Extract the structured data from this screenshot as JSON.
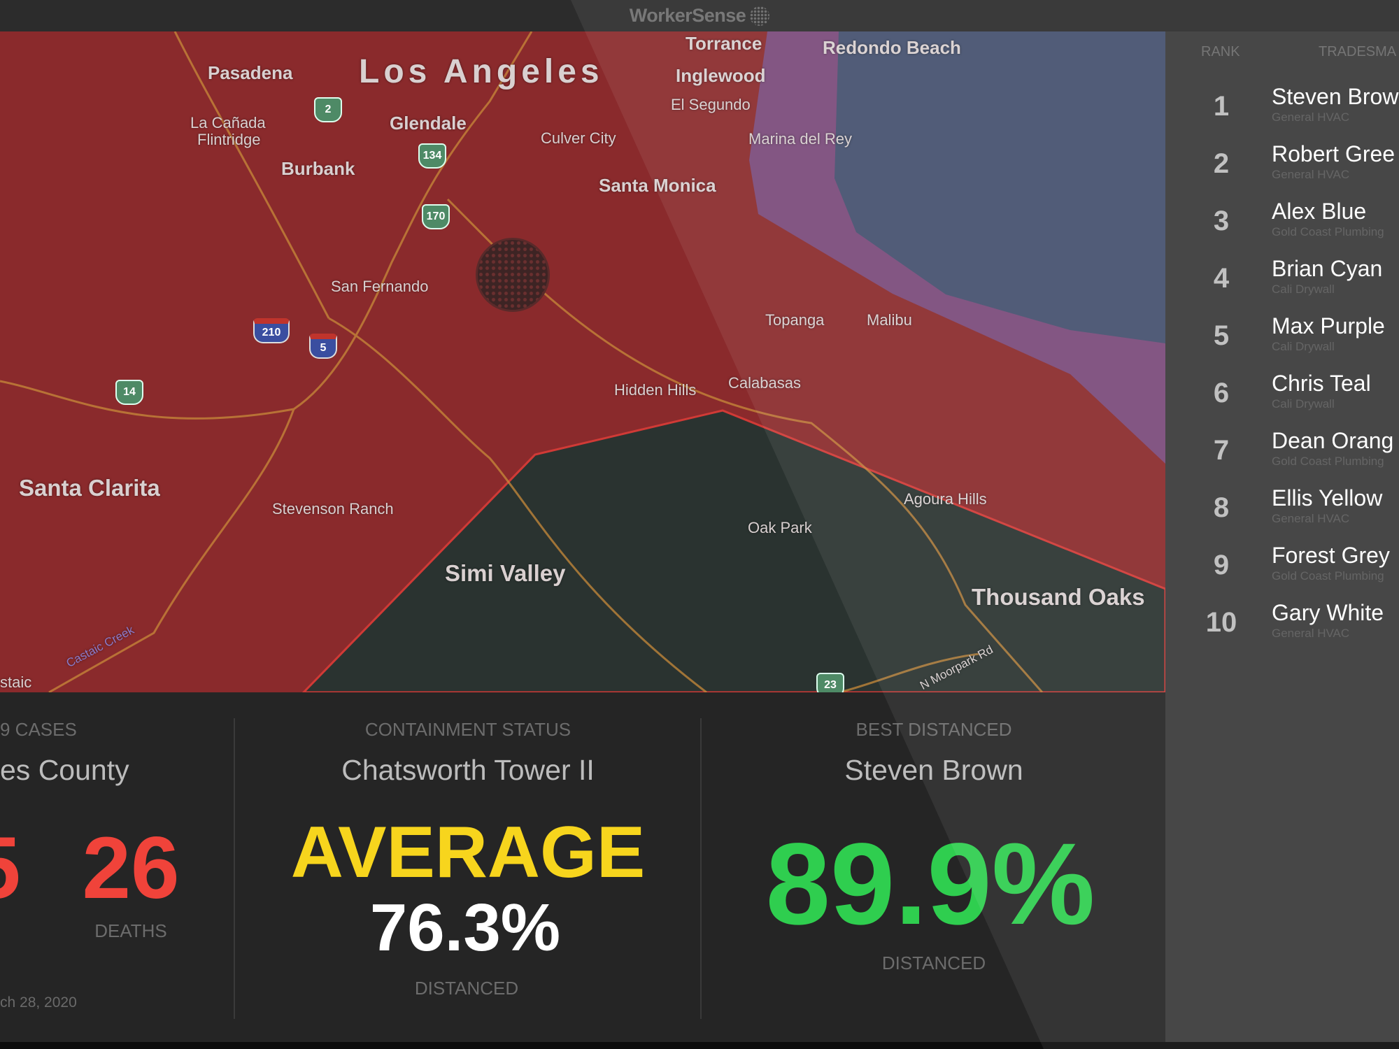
{
  "app": {
    "title": "WorkerSense",
    "logo_icon": "dot-grid-icon"
  },
  "map": {
    "labels": {
      "pasadena": "Pasadena",
      "los_angeles": "Los Angeles",
      "torrance": "Torrance",
      "redondo_beach": "Redondo Beach",
      "inglewood": "Inglewood",
      "el_segundo": "El Segundo",
      "la_canada": "La Cañada",
      "flintridge": "Flintridge",
      "glendale": "Glendale",
      "culver_city": "Culver City",
      "marina_del_rey": "Marina del Rey",
      "burbank": "Burbank",
      "santa_monica": "Santa Monica",
      "san_fernando": "San Fernando",
      "topanga": "Topanga",
      "malibu": "Malibu",
      "hidden_hills": "Hidden Hills",
      "calabasas": "Calabasas",
      "santa_clarita": "Santa Clarita",
      "stevenson_ranch": "Stevenson Ranch",
      "agoura_hills": "Agoura Hills",
      "oak_park": "Oak Park",
      "simi_valley": "Simi Valley",
      "thousand_oaks": "Thousand Oaks",
      "castaic_creek": "Castaic Creek",
      "moorpark_rd": "N Moorpark Rd",
      "castaic": "staic"
    },
    "shields": [
      "2",
      "134",
      "170",
      "210",
      "5",
      "14",
      "23"
    ],
    "colors": {
      "zone_red": "#8a2a2c",
      "zone_green": "#2a3330",
      "ocean": "#44506e",
      "coast": "#7a4a7a"
    }
  },
  "leaderboard": {
    "headers": {
      "rank": "RANK",
      "tradesman": "TRADESMA"
    },
    "rows": [
      {
        "rank": "1",
        "name": "Steven Brow",
        "company": "General HVAC"
      },
      {
        "rank": "2",
        "name": "Robert Gree",
        "company": "General HVAC"
      },
      {
        "rank": "3",
        "name": "Alex Blue",
        "company": "Gold Coast Plumbing"
      },
      {
        "rank": "4",
        "name": "Brian Cyan",
        "company": "Cali Drywall"
      },
      {
        "rank": "5",
        "name": "Max Purple",
        "company": "Cali Drywall"
      },
      {
        "rank": "6",
        "name": "Chris Teal",
        "company": "Cali Drywall"
      },
      {
        "rank": "7",
        "name": "Dean Orang",
        "company": "Gold Coast Plumbing"
      },
      {
        "rank": "8",
        "name": "Ellis Yellow",
        "company": "General HVAC"
      },
      {
        "rank": "9",
        "name": "Forest Grey",
        "company": "Gold Coast Plumbing"
      },
      {
        "rank": "10",
        "name": "Gary White",
        "company": "General HVAC"
      }
    ]
  },
  "cases": {
    "label": "9 CASES",
    "title": "es County",
    "cases_value": "5",
    "deaths_value": "26",
    "deaths_label": "DEATHS",
    "date": "ch 28, 2020",
    "color": "#f0433a"
  },
  "containment": {
    "label": "CONTAINMENT STATUS",
    "title": "Chatsworth Tower II",
    "status": "AVERAGE",
    "value": "76.3%",
    "value_label": "DISTANCED",
    "status_color": "#f7d51d"
  },
  "best": {
    "label": "BEST DISTANCED",
    "title": "Steven Brown",
    "value": "89.9%",
    "value_label": "DISTANCED",
    "color": "#2fce4f"
  }
}
